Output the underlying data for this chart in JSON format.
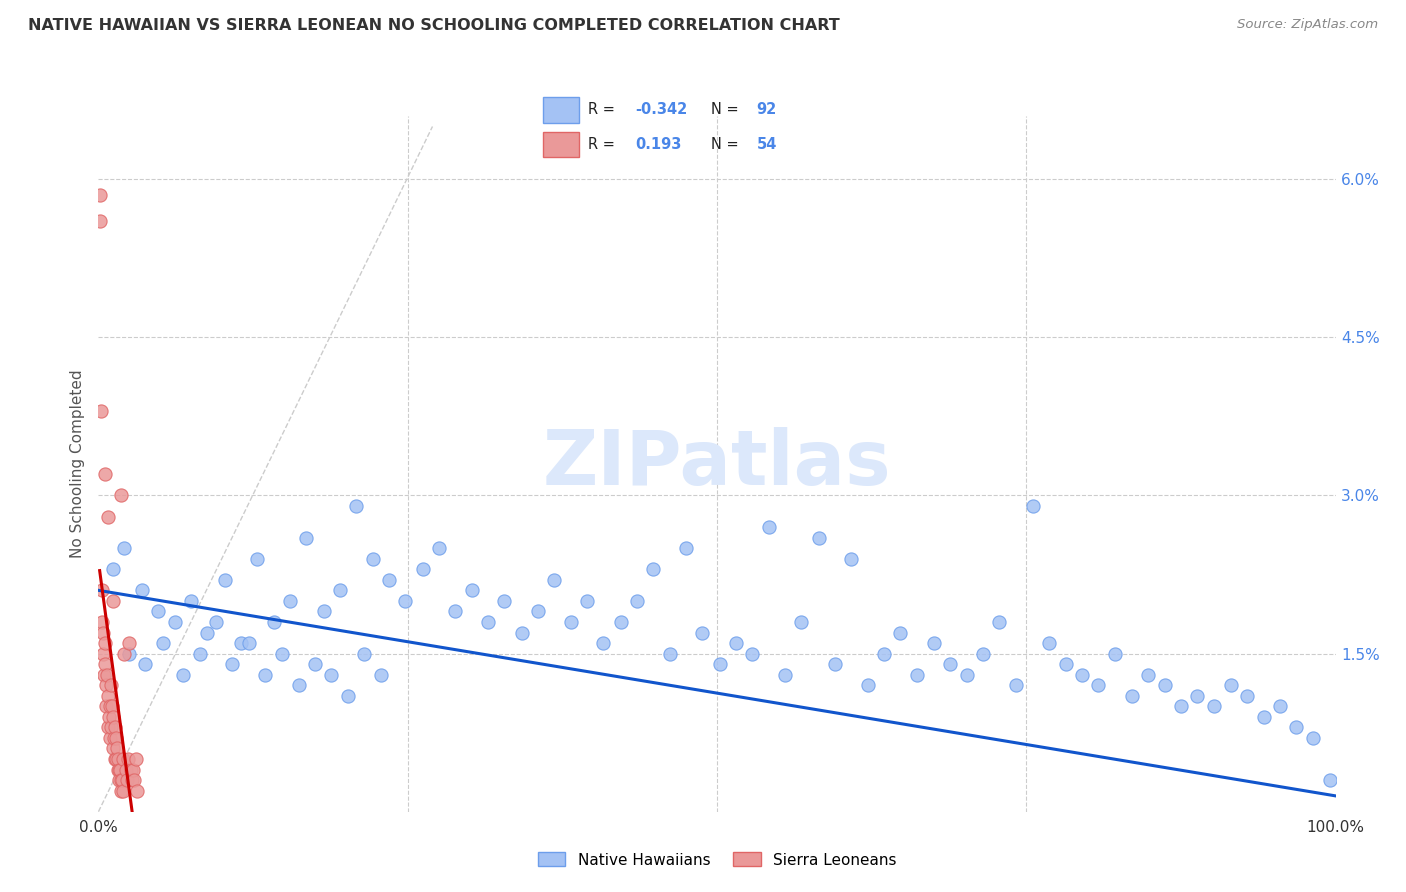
{
  "title": "NATIVE HAWAIIAN VS SIERRA LEONEAN NO SCHOOLING COMPLETED CORRELATION CHART",
  "source": "Source: ZipAtlas.com",
  "ylabel": "No Schooling Completed",
  "watermark": "ZIPatlas",
  "xlim": [
    0,
    100
  ],
  "ylim": [
    0,
    6.6
  ],
  "ytick_vals": [
    0,
    1.5,
    3.0,
    4.5,
    6.0
  ],
  "ytick_labels_right": [
    "",
    "1.5%",
    "3.0%",
    "4.5%",
    "6.0%"
  ],
  "blue_color": "#a4c2f4",
  "blue_edge_color": "#6d9eeb",
  "pink_color": "#ea9999",
  "pink_edge_color": "#e06666",
  "blue_line_color": "#1155cc",
  "pink_line_color": "#cc0000",
  "diag_line_color": "#cccccc",
  "background_color": "#ffffff",
  "grid_color": "#cccccc",
  "blue_x": [
    1.2,
    2.1,
    3.5,
    4.8,
    6.2,
    7.5,
    8.8,
    10.2,
    11.5,
    12.8,
    14.2,
    15.5,
    16.8,
    18.2,
    19.5,
    20.8,
    22.2,
    23.5,
    24.8,
    26.2,
    27.5,
    28.8,
    30.2,
    31.5,
    32.8,
    34.2,
    35.5,
    36.8,
    38.2,
    39.5,
    40.8,
    42.2,
    43.5,
    44.8,
    46.2,
    47.5,
    48.8,
    50.2,
    51.5,
    52.8,
    54.2,
    55.5,
    56.8,
    58.2,
    59.5,
    60.8,
    62.2,
    63.5,
    64.8,
    66.2,
    67.5,
    68.8,
    70.2,
    71.5,
    72.8,
    74.2,
    75.5,
    76.8,
    78.2,
    79.5,
    80.8,
    82.2,
    83.5,
    84.8,
    86.2,
    87.5,
    88.8,
    90.2,
    91.5,
    92.8,
    94.2,
    95.5,
    96.8,
    98.2,
    99.5,
    2.5,
    3.8,
    5.2,
    6.8,
    8.2,
    9.5,
    10.8,
    12.2,
    13.5,
    14.8,
    16.2,
    17.5,
    18.8,
    20.2,
    21.5,
    22.8
  ],
  "blue_y": [
    2.3,
    2.5,
    2.1,
    1.9,
    1.8,
    2.0,
    1.7,
    2.2,
    1.6,
    2.4,
    1.8,
    2.0,
    2.6,
    1.9,
    2.1,
    2.9,
    2.4,
    2.2,
    2.0,
    2.3,
    2.5,
    1.9,
    2.1,
    1.8,
    2.0,
    1.7,
    1.9,
    2.2,
    1.8,
    2.0,
    1.6,
    1.8,
    2.0,
    2.3,
    1.5,
    2.5,
    1.7,
    1.4,
    1.6,
    1.5,
    2.7,
    1.3,
    1.8,
    2.6,
    1.4,
    2.4,
    1.2,
    1.5,
    1.7,
    1.3,
    1.6,
    1.4,
    1.3,
    1.5,
    1.8,
    1.2,
    2.9,
    1.6,
    1.4,
    1.3,
    1.2,
    1.5,
    1.1,
    1.3,
    1.2,
    1.0,
    1.1,
    1.0,
    1.2,
    1.1,
    0.9,
    1.0,
    0.8,
    0.7,
    0.3,
    1.5,
    1.4,
    1.6,
    1.3,
    1.5,
    1.8,
    1.4,
    1.6,
    1.3,
    1.5,
    1.2,
    1.4,
    1.3,
    1.1,
    1.5,
    1.3
  ],
  "pink_x": [
    0.1,
    0.15,
    0.2,
    0.25,
    0.3,
    0.35,
    0.4,
    0.45,
    0.5,
    0.55,
    0.6,
    0.65,
    0.7,
    0.75,
    0.8,
    0.85,
    0.9,
    0.95,
    1.0,
    1.05,
    1.1,
    1.15,
    1.2,
    1.25,
    1.3,
    1.35,
    1.4,
    1.45,
    1.5,
    1.55,
    1.6,
    1.65,
    1.7,
    1.75,
    1.8,
    1.85,
    1.9,
    1.95,
    2.0,
    2.1,
    2.2,
    2.3,
    2.4,
    2.5,
    2.6,
    2.7,
    2.8,
    2.9,
    3.0,
    3.1,
    0.5,
    0.8,
    1.2,
    1.8
  ],
  "pink_y": [
    5.85,
    5.6,
    3.8,
    1.8,
    2.1,
    1.7,
    1.5,
    1.3,
    1.6,
    1.4,
    1.2,
    1.0,
    1.3,
    0.8,
    1.1,
    0.9,
    1.0,
    0.7,
    1.2,
    0.8,
    1.0,
    0.6,
    0.9,
    0.7,
    0.8,
    0.5,
    0.7,
    0.5,
    0.6,
    0.4,
    0.5,
    0.4,
    0.3,
    0.4,
    0.3,
    0.2,
    0.3,
    0.2,
    0.5,
    1.5,
    0.4,
    0.3,
    0.5,
    1.6,
    0.4,
    0.3,
    0.4,
    0.3,
    0.5,
    0.2,
    3.2,
    2.8,
    2.0,
    3.0
  ],
  "pink_line_x0": 0.1,
  "pink_line_x1": 3.1,
  "blue_line_x0": 0,
  "blue_line_x1": 100,
  "blue_line_y0": 2.1,
  "blue_line_y1": 0.15,
  "diag_x0": 0,
  "diag_y0": 0,
  "diag_x1": 27,
  "diag_y1": 6.5
}
